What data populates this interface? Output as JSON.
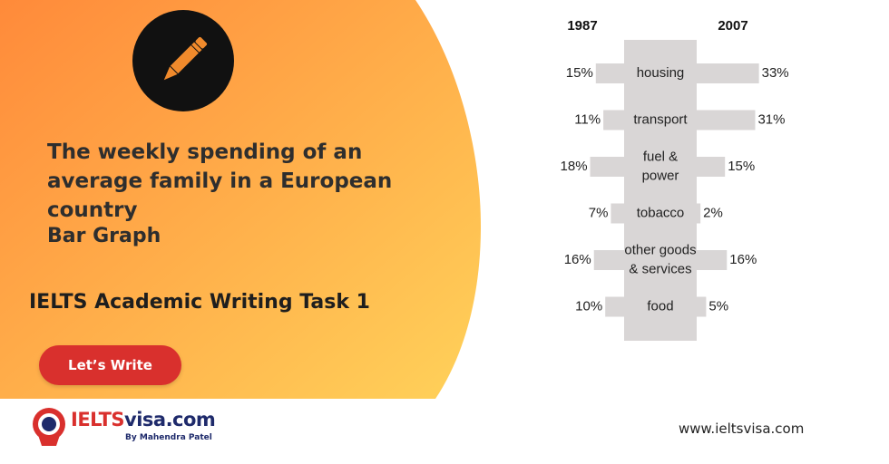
{
  "colors": {
    "orange_start": "#ff8a3a",
    "orange_end": "#ffd25a",
    "bar": "#d9d6d6",
    "cta": "#d9302d",
    "logo_red": "#d9302d",
    "logo_navy": "#1e2a6b"
  },
  "hero": {
    "icon": "pencil-icon",
    "title": "The weekly spending of an average family in a European country",
    "subtitle": "Bar Graph",
    "task": "IELTS Academic Writing Task 1",
    "cta_label": "Let’s Write"
  },
  "chart_data": {
    "type": "bar",
    "orientation": "horizontal-back-to-back",
    "series": [
      {
        "name": "1987",
        "values": [
          15,
          11,
          18,
          7,
          16,
          10
        ]
      },
      {
        "name": "2007",
        "values": [
          33,
          31,
          15,
          2,
          16,
          5
        ]
      }
    ],
    "categories": [
      "housing",
      "transport",
      "fuel & power",
      "tobacco",
      "other goods & services",
      "food"
    ],
    "category_lines": [
      [
        "housing"
      ],
      [
        "transport"
      ],
      [
        "fuel &",
        "power"
      ],
      [
        "tobacco"
      ],
      [
        "other goods",
        "& services"
      ],
      [
        "food"
      ]
    ],
    "value_labels": [
      [
        "15%",
        "11%",
        "18%",
        "7%",
        "16%",
        "10%"
      ],
      [
        "33%",
        "31%",
        "15%",
        "2%",
        "16%",
        "5%"
      ]
    ],
    "unit": "%",
    "grid": false,
    "legend": "series names above columns"
  },
  "footer": {
    "logo_part1": "IELTS",
    "logo_part2": "visa.com",
    "logo_tagline": "By Mahendra Patel",
    "website": "www.ieltsvisa.com"
  }
}
